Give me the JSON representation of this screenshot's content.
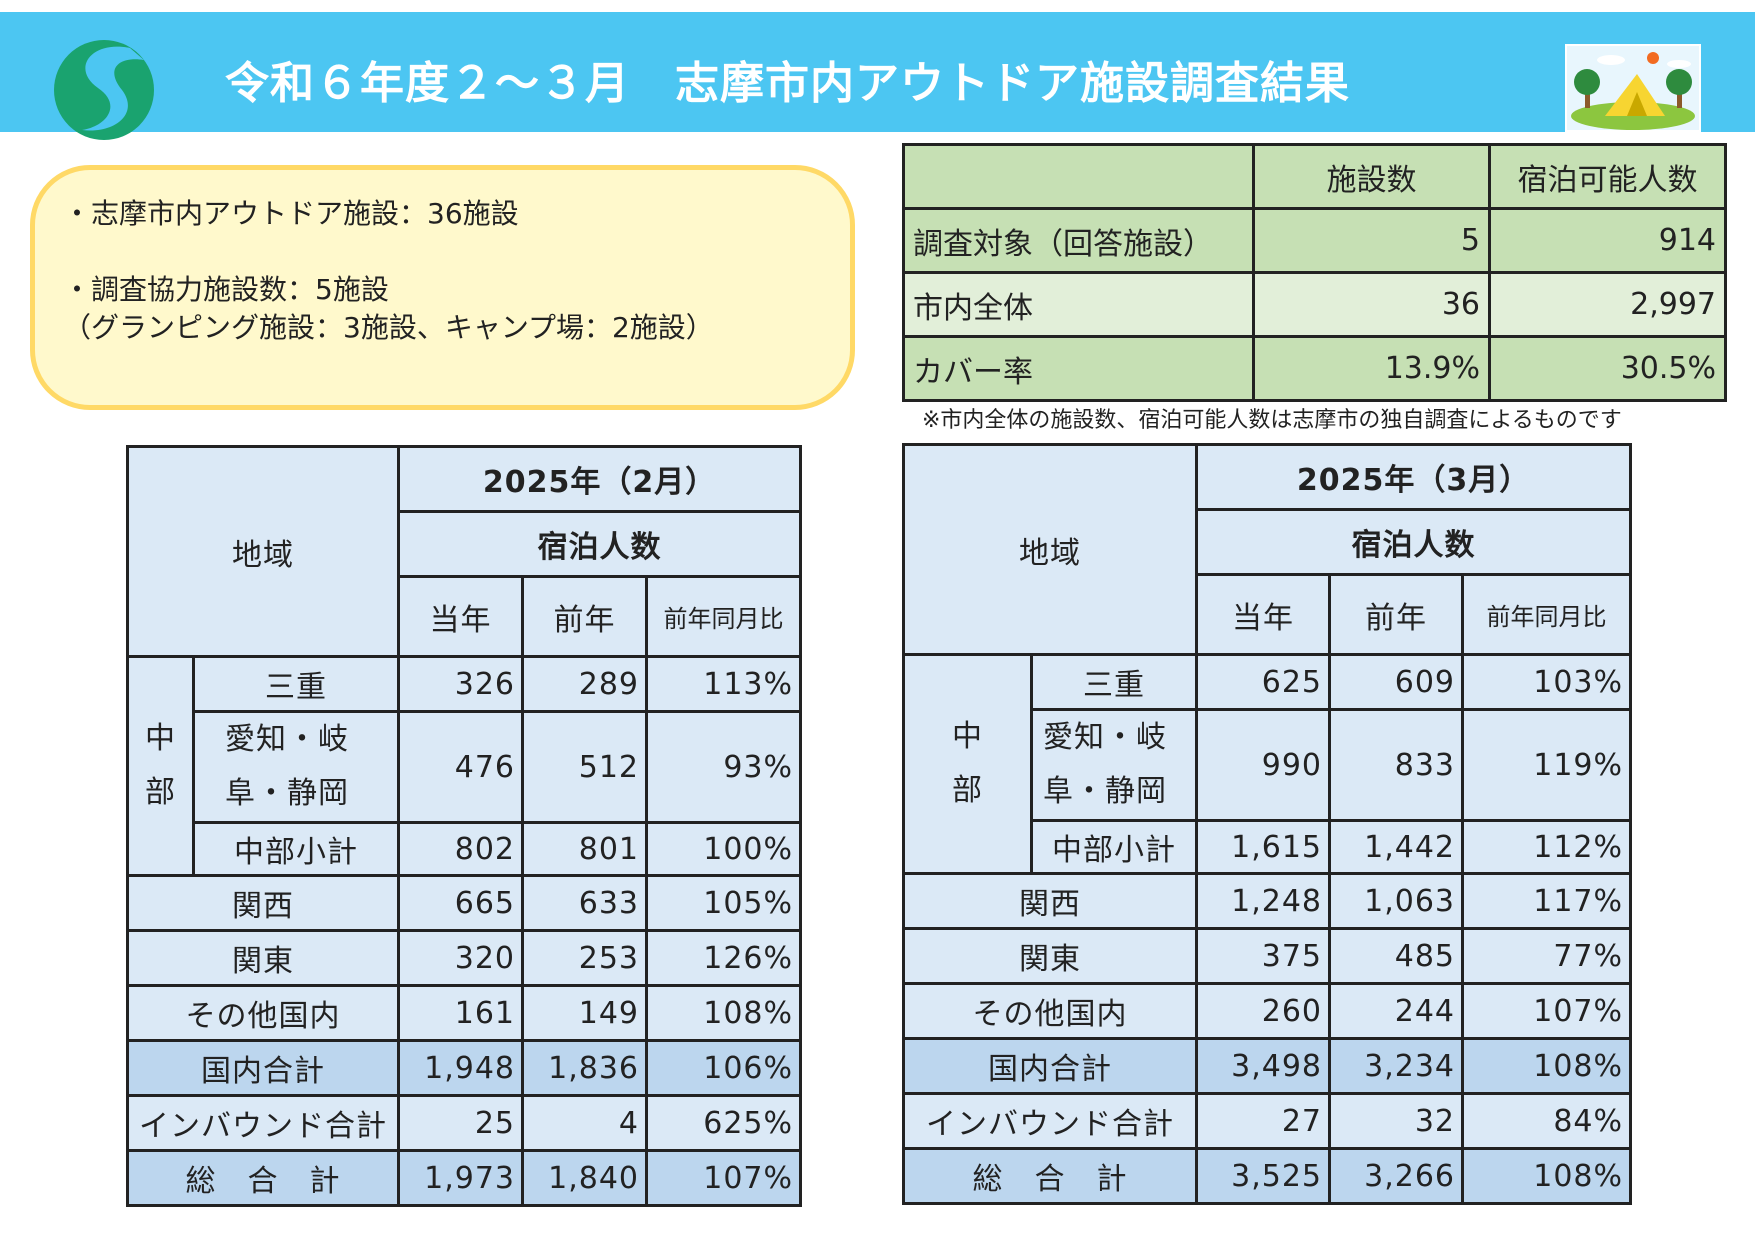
{
  "header": {
    "title": "令和６年度２～３月　志摩市内アウトドア施設調査結果",
    "logo_icon": "city-logo-icon",
    "camp_icon": "camping-tent-icon",
    "banner_color": "#4cc6f2"
  },
  "info": {
    "line1": "・志摩市内アウトドア施設：36施設",
    "line2": "・調査協力施設数：5施設",
    "line3": "（グランピング施設：3施設、キャンプ場：2施設）"
  },
  "summary": {
    "headers": [
      "",
      "施設数",
      "宿泊可能人数"
    ],
    "rows": [
      {
        "label": "調査対象（回答施設）",
        "facilities": "5",
        "capacity": "914"
      },
      {
        "label": "市内全体",
        "facilities": "36",
        "capacity": "2,997"
      },
      {
        "label": "カバー率",
        "facilities": "13.9%",
        "capacity": "30.5%"
      }
    ],
    "note": "※市内全体の施設数、宿泊可能人数は志摩市の独自調査によるものです"
  },
  "tables": [
    {
      "period": "2025年（2月）",
      "region_label": "地域",
      "metric": "宿泊人数",
      "cols": [
        "当年",
        "前年",
        "前年同月比"
      ],
      "chubu_label": "中部",
      "chubu_l1": "中",
      "chubu_l2": "部",
      "rows": {
        "mie": {
          "label": "三重",
          "cur": "326",
          "prev": "289",
          "ratio": "113%"
        },
        "aichi": {
          "label1": "愛知・岐",
          "label2": "阜・静岡",
          "cur": "476",
          "prev": "512",
          "ratio": "93%"
        },
        "chubu_sub": {
          "label": "中部小計",
          "cur": "802",
          "prev": "801",
          "ratio": "100%"
        },
        "kansai": {
          "label": "関西",
          "cur": "665",
          "prev": "633",
          "ratio": "105%"
        },
        "kanto": {
          "label": "関東",
          "cur": "320",
          "prev": "253",
          "ratio": "126%"
        },
        "other": {
          "label": "その他国内",
          "cur": "161",
          "prev": "149",
          "ratio": "108%"
        },
        "domestic": {
          "label": "国内合計",
          "cur": "1,948",
          "prev": "1,836",
          "ratio": "106%"
        },
        "inbound": {
          "label": "インバウンド合計",
          "cur": "25",
          "prev": "4",
          "ratio": "625%"
        },
        "total": {
          "label": "総　合　計",
          "cur": "1,973",
          "prev": "1,840",
          "ratio": "107%"
        }
      }
    },
    {
      "period": "2025年（3月）",
      "region_label": "地域",
      "metric": "宿泊人数",
      "cols": [
        "当年",
        "前年",
        "前年同月比"
      ],
      "chubu_label": "中部",
      "chubu_l1": "中",
      "chubu_l2": "部",
      "rows": {
        "mie": {
          "label": "三重",
          "cur": "625",
          "prev": "609",
          "ratio": "103%"
        },
        "aichi": {
          "label1": "愛知・岐",
          "label2": "阜・静岡",
          "cur": "990",
          "prev": "833",
          "ratio": "119%"
        },
        "chubu_sub": {
          "label": "中部小計",
          "cur": "1,615",
          "prev": "1,442",
          "ratio": "112%"
        },
        "kansai": {
          "label": "関西",
          "cur": "1,248",
          "prev": "1,063",
          "ratio": "117%"
        },
        "kanto": {
          "label": "関東",
          "cur": "375",
          "prev": "485",
          "ratio": "77%"
        },
        "other": {
          "label": "その他国内",
          "cur": "260",
          "prev": "244",
          "ratio": "107%"
        },
        "domestic": {
          "label": "国内合計",
          "cur": "3,498",
          "prev": "3,234",
          "ratio": "108%"
        },
        "inbound": {
          "label": "インバウンド合計",
          "cur": "27",
          "prev": "32",
          "ratio": "84%"
        },
        "total": {
          "label": "総　合　計",
          "cur": "3,525",
          "prev": "3,266",
          "ratio": "108%"
        }
      }
    }
  ]
}
